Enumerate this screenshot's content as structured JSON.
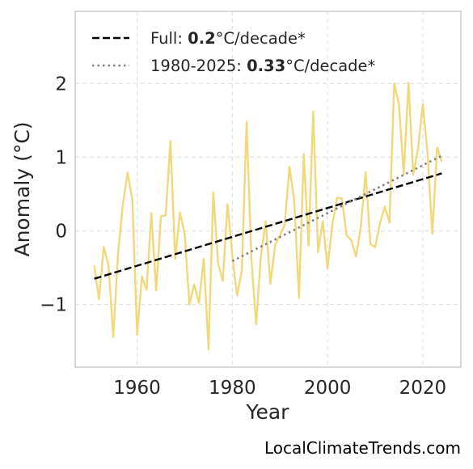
{
  "chart_data": {
    "type": "line",
    "xlabel": "Year",
    "ylabel": "Anomaly (°C)",
    "xlim": [
      1947,
      2028
    ],
    "ylim": [
      -1.85,
      2.98
    ],
    "xticks": [
      1960,
      1980,
      2000,
      2020
    ],
    "xtick_labels": [
      "1960",
      "1980",
      "2000",
      "2020"
    ],
    "yticks": [
      -1,
      0,
      1,
      2
    ],
    "ytick_labels": [
      "−1",
      "0",
      "1",
      "2"
    ],
    "grid": true,
    "legend_position": "top-left",
    "series": [
      {
        "style": "solid",
        "color": "#f2d87a",
        "x": [
          1951,
          1952,
          1953,
          1954,
          1955,
          1956,
          1957,
          1958,
          1959,
          1960,
          1961,
          1962,
          1963,
          1964,
          1965,
          1966,
          1967,
          1968,
          1969,
          1970,
          1971,
          1972,
          1973,
          1974,
          1975,
          1976,
          1977,
          1978,
          1979,
          1980,
          1981,
          1982,
          1983,
          1984,
          1985,
          1986,
          1987,
          1988,
          1989,
          1990,
          1991,
          1992,
          1993,
          1994,
          1995,
          1996,
          1997,
          1998,
          1999,
          2000,
          2001,
          2002,
          2003,
          2004,
          2005,
          2006,
          2007,
          2008,
          2009,
          2010,
          2011,
          2012,
          2013,
          2014,
          2015,
          2016,
          2017,
          2018,
          2019,
          2020,
          2021,
          2022,
          2023,
          2024
        ],
        "y": [
          -0.47,
          -0.93,
          -0.22,
          -0.47,
          -1.44,
          -0.31,
          0.35,
          0.79,
          0.42,
          -1.41,
          -0.62,
          -0.8,
          0.24,
          -0.81,
          0.2,
          0.21,
          1.22,
          -0.38,
          0.25,
          -0.04,
          -1.0,
          -0.73,
          -0.98,
          -0.38,
          -1.61,
          0.52,
          -0.44,
          -0.68,
          0.36,
          -0.33,
          -0.88,
          -0.54,
          1.48,
          -0.38,
          -1.27,
          -0.34,
          0.13,
          -0.72,
          -0.19,
          -0.06,
          0.08,
          0.87,
          0.41,
          -0.91,
          1.04,
          -0.2,
          1.62,
          -0.29,
          0.13,
          -0.51,
          0.09,
          0.45,
          0.44,
          -0.06,
          -0.13,
          -0.35,
          0.06,
          0.8,
          -0.18,
          -0.22,
          0.1,
          0.33,
          0.11,
          2.0,
          1.72,
          0.76,
          2.01,
          0.76,
          1.12,
          1.72,
          1.06,
          -0.04,
          1.13,
          0.94
        ]
      },
      {
        "style": "dashed",
        "color": "#000000",
        "x": [
          1951,
          2024
        ],
        "y": [
          -0.65,
          0.78
        ]
      },
      {
        "style": "dotted",
        "color": "#808080",
        "x": [
          1980,
          2024
        ],
        "y": [
          -0.41,
          1.02
        ]
      }
    ]
  },
  "legend": [
    {
      "prefix": "Full: ",
      "bold": "0.2",
      "suffix": "°C/decade*",
      "style": "dashed",
      "color": "#000000"
    },
    {
      "prefix": "1980-2025: ",
      "bold": "0.33",
      "suffix": "°C/decade*",
      "style": "dotted",
      "color": "#808080"
    }
  ],
  "credit": "LocalClimateTrends.com"
}
